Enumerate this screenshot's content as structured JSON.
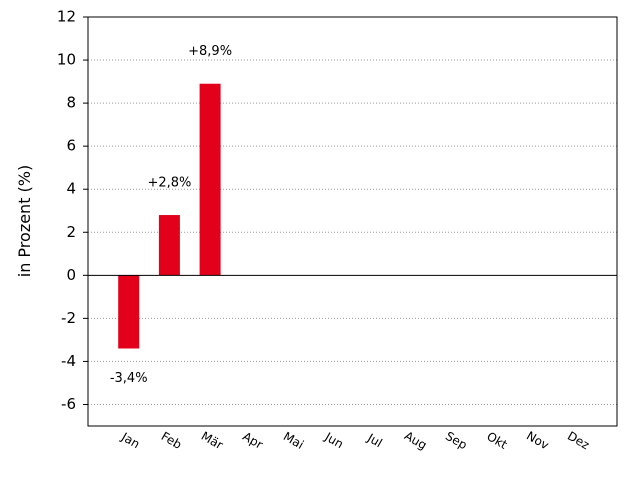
{
  "chart_data": {
    "type": "bar",
    "y_label": "in Prozent (%)",
    "categories": [
      "Jan",
      "Feb",
      "Mär",
      "Apr",
      "Mai",
      "Jun",
      "Jul",
      "Aug",
      "Sep",
      "Okt",
      "Nov",
      "Dez"
    ],
    "values": [
      -3.4,
      2.8,
      8.9,
      null,
      null,
      null,
      null,
      null,
      null,
      null,
      null,
      null
    ],
    "value_labels": [
      "-3,4%",
      "+2,8%",
      "+8,9%",
      null,
      null,
      null,
      null,
      null,
      null,
      null,
      null,
      null
    ],
    "color": "#e2001a",
    "ylim": [
      -7,
      12
    ],
    "yticks": [
      -6,
      -4,
      -2,
      0,
      2,
      4,
      6,
      8,
      10,
      12
    ],
    "grid": true
  }
}
